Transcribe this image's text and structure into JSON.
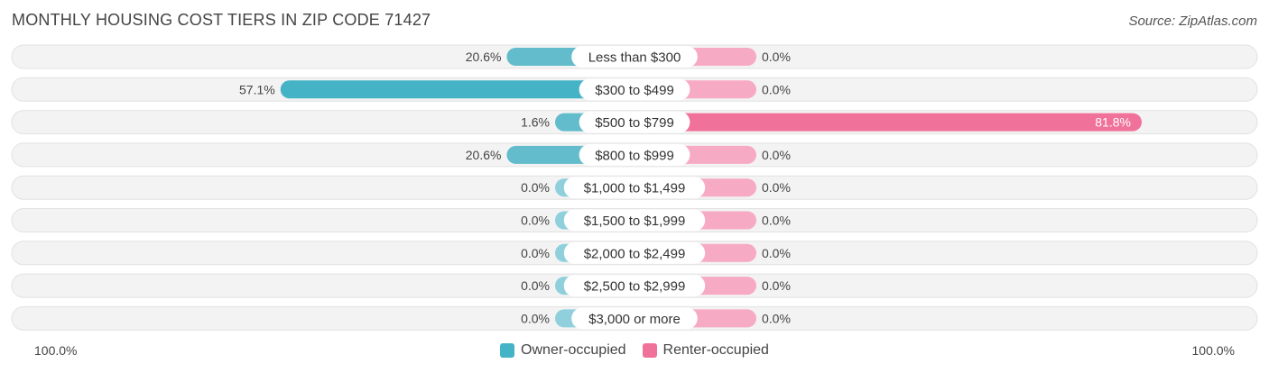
{
  "title": "MONTHLY HOUSING COST TIERS IN ZIP CODE 71427",
  "source": "Source: ZipAtlas.com",
  "axis": {
    "left_label": "100.0%",
    "right_label": "100.0%"
  },
  "legend": {
    "owner": {
      "label": "Owner-occupied",
      "color": "#45b3c6"
    },
    "renter": {
      "label": "Renter-occupied",
      "color": "#f0719a"
    }
  },
  "chart_data": {
    "type": "bar",
    "orientation": "diverging-horizontal",
    "xlim": [
      -100,
      100
    ],
    "categories": [
      "Less than $300",
      "$300 to $499",
      "$500 to $799",
      "$800 to $999",
      "$1,000 to $1,499",
      "$1,500 to $1,999",
      "$2,000 to $2,499",
      "$2,500 to $2,999",
      "$3,000 or more"
    ],
    "series": [
      {
        "name": "Owner-occupied",
        "values": [
          20.6,
          57.1,
          1.6,
          20.6,
          0.0,
          0.0,
          0.0,
          0.0,
          0.0
        ],
        "labels": [
          "20.6%",
          "57.1%",
          "1.6%",
          "20.6%",
          "0.0%",
          "0.0%",
          "0.0%",
          "0.0%",
          "0.0%"
        ]
      },
      {
        "name": "Renter-occupied",
        "values": [
          0.0,
          0.0,
          81.8,
          0.0,
          0.0,
          0.0,
          0.0,
          0.0,
          0.0
        ],
        "labels": [
          "0.0%",
          "0.0%",
          "81.8%",
          "0.0%",
          "0.0%",
          "0.0%",
          "0.0%",
          "0.0%",
          "0.0%"
        ]
      }
    ],
    "legend_position": "bottom-center",
    "grid": false
  }
}
